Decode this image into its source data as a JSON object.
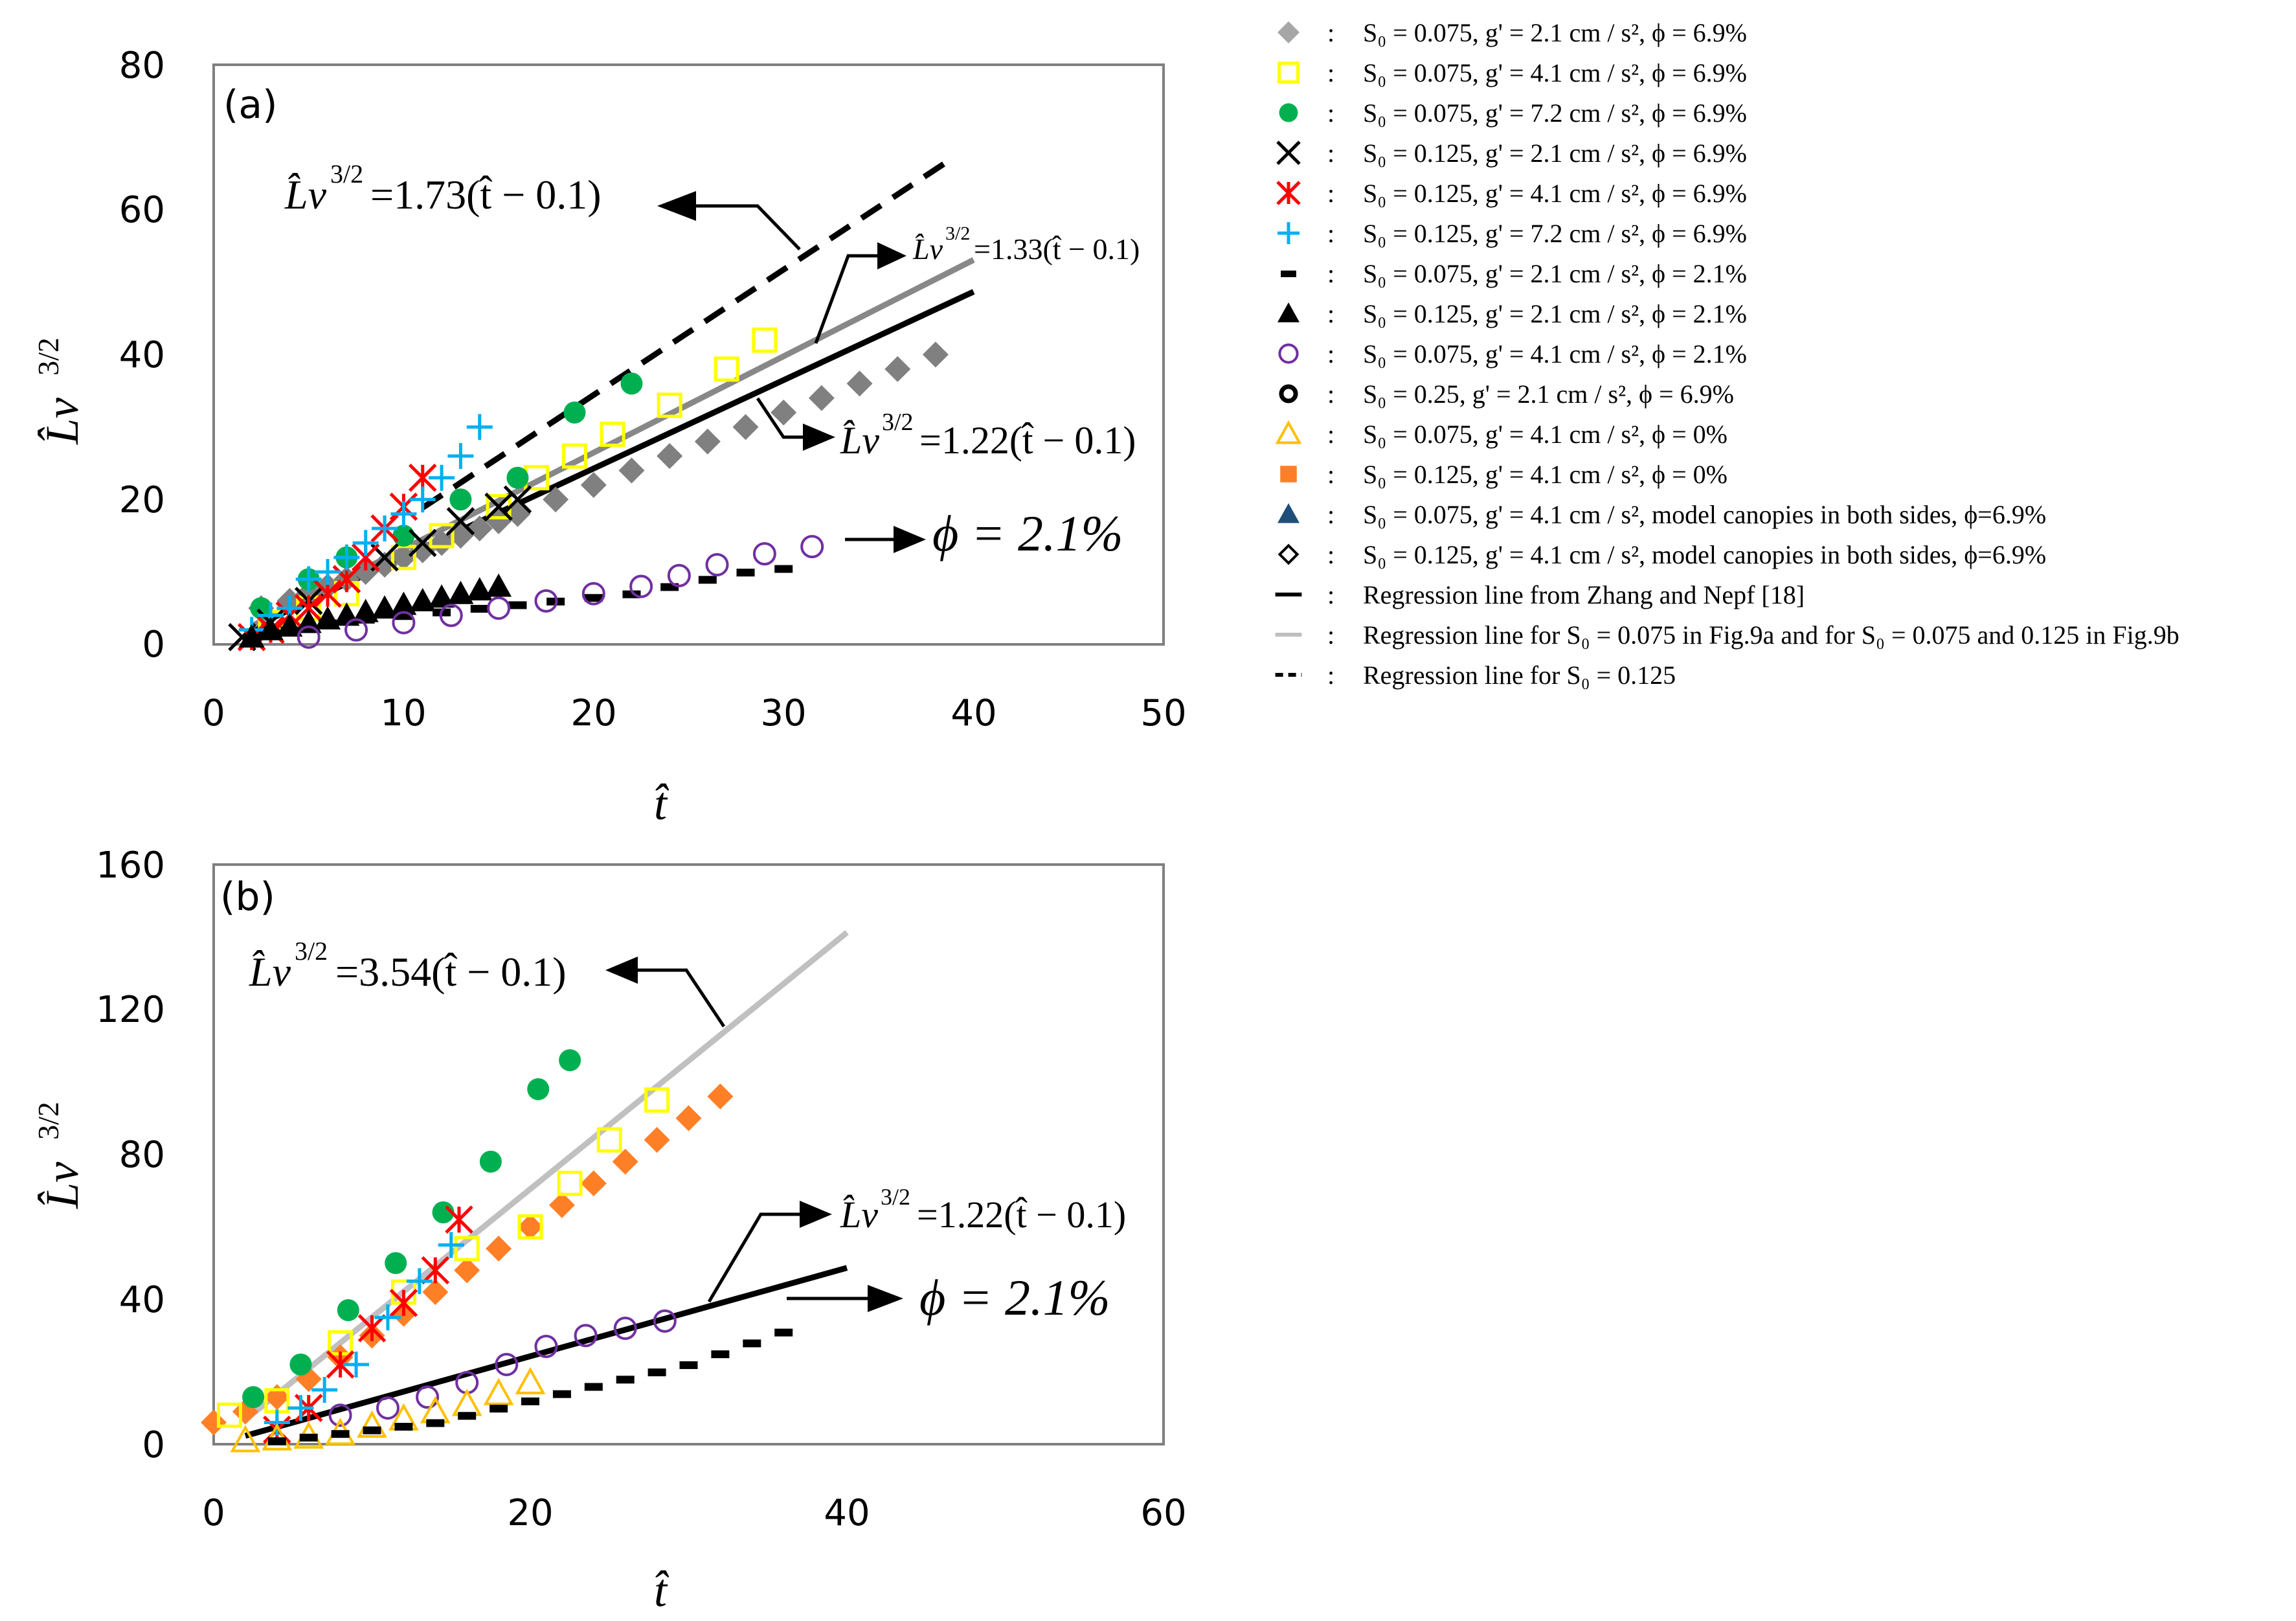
{
  "chart_data": [
    {
      "type": "scatter",
      "panel_label": "(a)",
      "xlabel": "t̂",
      "ylabel": "L̂v",
      "ylabel_sup": "3/2",
      "xlim": [
        0,
        50
      ],
      "ylim": [
        0,
        80
      ],
      "xticks": [
        "0",
        "10",
        "20",
        "30",
        "40",
        "50"
      ],
      "yticks": [
        "0",
        "20",
        "40",
        "60",
        "80"
      ],
      "series": [
        {
          "name": "gray-diamond",
          "marker": "diamond",
          "color": "#808080",
          "x": [
            2.5,
            4,
            5,
            6,
            7,
            8,
            9,
            10,
            11,
            12,
            13,
            14,
            15,
            16,
            18,
            20,
            22,
            24,
            26,
            28,
            30,
            32,
            34,
            36,
            38
          ],
          "y": [
            5,
            6,
            7,
            8,
            9,
            10,
            11,
            12,
            13,
            14,
            15,
            16,
            17,
            18,
            20,
            22,
            24,
            26,
            28,
            30,
            32,
            34,
            36,
            38,
            40
          ]
        },
        {
          "name": "yellow-square",
          "marker": "square-open",
          "color": "#ffff00",
          "x": [
            3,
            5,
            7,
            10,
            12,
            15,
            17,
            19,
            21,
            24,
            27,
            29
          ],
          "y": [
            3,
            5,
            7,
            12,
            15,
            19,
            23,
            26,
            29,
            33,
            38,
            42
          ]
        },
        {
          "name": "green-circle",
          "marker": "circle",
          "color": "#00b050",
          "x": [
            2.5,
            5,
            7,
            10,
            13,
            16,
            19,
            22
          ],
          "y": [
            5,
            9,
            12,
            15,
            20,
            23,
            32,
            36
          ]
        },
        {
          "name": "black-x",
          "marker": "x",
          "color": "#000000",
          "x": [
            1.5,
            3,
            5,
            7,
            9,
            11,
            13,
            15,
            16
          ],
          "y": [
            1,
            3,
            6,
            9,
            12,
            14,
            17,
            19,
            20
          ]
        },
        {
          "name": "red-asterisk",
          "marker": "asterisk",
          "color": "#ff0000",
          "x": [
            2,
            3,
            4,
            5,
            6,
            7,
            8,
            9,
            10,
            11
          ],
          "y": [
            1,
            2,
            4,
            5,
            7,
            9,
            12,
            16,
            19,
            23
          ]
        },
        {
          "name": "blue-plus",
          "marker": "plus",
          "color": "#00b0f0",
          "x": [
            2,
            3,
            4,
            5,
            6,
            7,
            8,
            9,
            10,
            11,
            12,
            13,
            14
          ],
          "y": [
            2,
            4,
            5,
            9,
            10,
            12,
            14,
            16,
            18,
            20,
            23,
            26,
            30
          ]
        },
        {
          "name": "black-dash",
          "marker": "dash",
          "color": "#000000",
          "x": [
            2,
            4,
            6,
            8,
            10,
            12,
            14,
            16,
            18,
            20,
            22,
            24,
            26,
            28,
            30
          ],
          "y": [
            1,
            2,
            3,
            3.5,
            4,
            4.5,
            5,
            5.5,
            6,
            6.5,
            7,
            8,
            9,
            10,
            10.5
          ]
        },
        {
          "name": "black-triangle",
          "marker": "triangle",
          "color": "#000000",
          "x": [
            2,
            3,
            4,
            5,
            6,
            7,
            8,
            9,
            10,
            11,
            12,
            13,
            14,
            15
          ],
          "y": [
            1,
            2,
            2.5,
            3,
            3.5,
            4,
            4.5,
            5,
            5.5,
            6,
            6.5,
            7,
            7.5,
            8
          ]
        },
        {
          "name": "purple-circle",
          "marker": "circle-open",
          "color": "#7030a0",
          "x": [
            5,
            7.5,
            10,
            12.5,
            15,
            17.5,
            20,
            22.5,
            24.5,
            26.5,
            29,
            31.5
          ],
          "y": [
            1,
            2,
            3,
            4,
            5,
            6,
            7,
            8,
            9.5,
            11,
            12.5,
            13.5
          ]
        }
      ],
      "lines": [
        {
          "name": "regression-zhang-nepf",
          "style": "solid",
          "color": "#000000",
          "slope": 1.22,
          "offset": 0.1,
          "x": [
            2,
            40
          ]
        },
        {
          "name": "regression-s0-0.075",
          "style": "solid",
          "color": "#888888",
          "slope": 1.33,
          "offset": 0.1,
          "x": [
            2,
            40
          ]
        },
        {
          "name": "regression-s0-0.125",
          "style": "dashed",
          "color": "#000000",
          "slope": 1.73,
          "offset": 0.1,
          "x": [
            11,
            39
          ]
        }
      ],
      "annotations": [
        {
          "lhs": "L̂v",
          "sup": "3/2",
          "rhs": "=1.73(t̂ − 0.1)"
        },
        {
          "lhs": "L̂v",
          "sup": "3/2",
          "rhs": "=1.33(t̂ − 0.1)"
        },
        {
          "lhs": "L̂v",
          "sup": "3/2",
          "rhs": "=1.22(t̂ − 0.1)"
        },
        {
          "text": "ϕ = 2.1%"
        }
      ]
    },
    {
      "type": "scatter",
      "panel_label": "(b)",
      "xlabel": "t̂",
      "ylabel": "L̂v",
      "ylabel_sup": "3/2",
      "xlim": [
        0,
        60
      ],
      "ylim": [
        0,
        160
      ],
      "xticks": [
        "0",
        "20",
        "40",
        "60"
      ],
      "yticks": [
        "0",
        "40",
        "80",
        "120",
        "160"
      ],
      "series": [
        {
          "name": "orange-diamond",
          "marker": "diamond",
          "color": "#ff7f27",
          "x": [
            0,
            2,
            4,
            6,
            8,
            10,
            12,
            14,
            16,
            18,
            20,
            22,
            24,
            26,
            28,
            30,
            32
          ],
          "y": [
            6,
            9,
            13,
            18,
            24,
            30,
            36,
            42,
            48,
            54,
            60,
            66,
            72,
            78,
            84,
            90,
            96
          ]
        },
        {
          "name": "yellow-square",
          "marker": "square-open",
          "color": "#ffff00",
          "x": [
            1,
            4,
            8,
            12,
            16,
            20,
            22.5,
            25,
            28
          ],
          "y": [
            8,
            12,
            28,
            42,
            54,
            60,
            72,
            84,
            95
          ]
        },
        {
          "name": "green-circle",
          "marker": "circle",
          "color": "#00b050",
          "x": [
            2.5,
            5.5,
            8.5,
            11.5,
            14.5,
            17.5,
            20.5,
            22.5
          ],
          "y": [
            13,
            22,
            37,
            50,
            64,
            78,
            98,
            106
          ]
        },
        {
          "name": "red-asterisk",
          "marker": "asterisk",
          "color": "#ff0000",
          "x": [
            4,
            6,
            8,
            10,
            12,
            14,
            15.5
          ],
          "y": [
            4,
            10,
            22,
            32,
            39,
            48,
            62
          ]
        },
        {
          "name": "blue-plus",
          "marker": "plus",
          "color": "#00b0f0",
          "x": [
            4,
            5.5,
            7,
            9,
            11,
            13,
            15
          ],
          "y": [
            6,
            10,
            15,
            22,
            35,
            45,
            55
          ]
        },
        {
          "name": "purple-circle",
          "marker": "circle-open",
          "color": "#7030a0",
          "x": [
            8,
            11,
            13.5,
            16,
            18.5,
            21,
            23.5,
            26,
            28.5
          ],
          "y": [
            8,
            10,
            13,
            17,
            22,
            27,
            30,
            32,
            34
          ]
        },
        {
          "name": "orange-triangle",
          "marker": "triangle-open",
          "color": "#ffc000",
          "x": [
            2,
            4,
            6,
            8,
            10,
            12,
            14,
            16,
            18,
            20
          ],
          "y": [
            1,
            1.5,
            2,
            3,
            5,
            7,
            9,
            11,
            14,
            17
          ]
        },
        {
          "name": "black-dash",
          "marker": "dash",
          "color": "#000000",
          "x": [
            4,
            6,
            8,
            10,
            12,
            14,
            16,
            18,
            20,
            22,
            24,
            26,
            28,
            30,
            32,
            34,
            36
          ],
          "y": [
            1,
            2,
            3,
            4,
            5,
            6,
            8,
            10,
            12,
            14,
            16,
            18,
            20,
            22,
            25,
            28,
            31
          ]
        }
      ],
      "lines": [
        {
          "name": "regression-zhang-nepf",
          "style": "solid",
          "color": "#000000",
          "slope": 1.22,
          "offset": 0.1,
          "x": [
            2,
            40
          ]
        },
        {
          "name": "regression-s0-0.075-0.125",
          "style": "solid",
          "color": "#c0c0c0",
          "slope": 3.54,
          "offset": 0.1,
          "x": [
            2,
            40
          ]
        }
      ],
      "annotations": [
        {
          "lhs": "L̂v",
          "sup": "3/2",
          "rhs": "=3.54(t̂ − 0.1)"
        },
        {
          "lhs": "L̂v",
          "sup": "3/2",
          "rhs": "=1.22(t̂ − 0.1)"
        },
        {
          "text": "ϕ = 2.1%"
        }
      ]
    }
  ],
  "legend": {
    "separator": ":",
    "entries": [
      {
        "marker": "diamond",
        "color": "#a6a6a6",
        "label": "S₀ = 0.075, g' = 2.1 cm / s², ϕ = 6.9%"
      },
      {
        "marker": "square-open",
        "color": "#ffff00",
        "label": "S₀ = 0.075, g' = 4.1 cm / s², ϕ = 6.9%"
      },
      {
        "marker": "circle",
        "color": "#00b050",
        "label": "S₀ = 0.075, g' = 7.2 cm / s², ϕ = 6.9%"
      },
      {
        "marker": "x",
        "color": "#000000",
        "label": "S₀ = 0.125, g' = 2.1 cm / s², ϕ = 6.9%"
      },
      {
        "marker": "asterisk",
        "color": "#ff0000",
        "label": "S₀ = 0.125, g' = 4.1 cm / s², ϕ = 6.9%"
      },
      {
        "marker": "plus",
        "color": "#00b0f0",
        "label": "S₀ = 0.125, g' = 7.2 cm / s², ϕ = 6.9%"
      },
      {
        "marker": "dash",
        "color": "#000000",
        "label": "S₀ = 0.075, g' = 2.1 cm / s², ϕ = 2.1%"
      },
      {
        "marker": "triangle",
        "color": "#000000",
        "label": "S₀ = 0.125, g' = 2.1 cm / s², ϕ = 2.1%"
      },
      {
        "marker": "circle-open",
        "color": "#7030a0",
        "label": "S₀ = 0.075, g' = 4.1 cm / s², ϕ = 2.1%"
      },
      {
        "marker": "circle-open-thick",
        "color": "#000000",
        "label": "S₀ = 0.25, g' = 2.1 cm / s², ϕ = 6.9%"
      },
      {
        "marker": "triangle-open",
        "color": "#ffc000",
        "label": "S₀ = 0.075, g' = 4.1 cm / s², ϕ = 0%"
      },
      {
        "marker": "square",
        "color": "#ff7f27",
        "label": "S₀ = 0.125, g' = 4.1 cm / s², ϕ = 0%"
      },
      {
        "marker": "triangle",
        "color": "#1f4e79",
        "label": "S₀ = 0.075, g' = 4.1 cm / s², model canopies in both sides, ϕ=6.9%"
      },
      {
        "marker": "diamond-open",
        "color": "#000000",
        "label": "S₀ = 0.125, g' = 4.1 cm / s², model canopies in both sides, ϕ=6.9%"
      },
      {
        "marker": "line",
        "color": "#000000",
        "label": "Regression line from Zhang and Nepf [18]"
      },
      {
        "marker": "line",
        "color": "#bfbfbf",
        "label": "Regression line for S₀ = 0.075 in Fig.9a and for S₀ = 0.075 and 0.125 in Fig.9b"
      },
      {
        "marker": "dashed-line",
        "color": "#000000",
        "label": "Regression line for S₀ = 0.125"
      }
    ]
  }
}
